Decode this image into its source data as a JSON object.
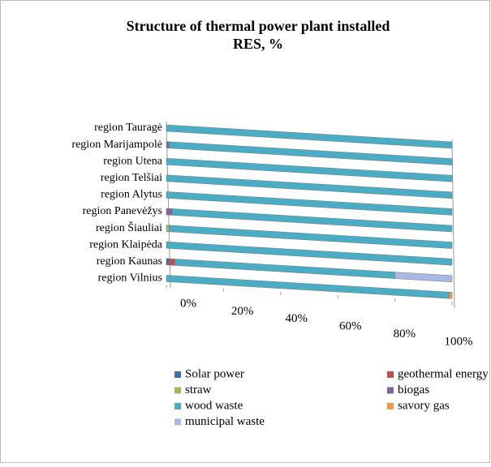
{
  "chart_data": {
    "type": "bar",
    "orientation": "horizontal",
    "stacked": true,
    "title": [
      "Structure of thermal power plant installed",
      "RES, %"
    ],
    "categories": [
      "region Tauragė",
      "region Marijampolė",
      "region Utena",
      "region Telšiai",
      "region Alytus",
      "region Panevėžys",
      "region Šiauliai",
      "region Klaipėda",
      "region Kaunas",
      "region Vilnius"
    ],
    "series": [
      {
        "name": "Solar power",
        "color": "#3e6fa8",
        "values": [
          0,
          0,
          0,
          0,
          0,
          0,
          0,
          0,
          1,
          0
        ]
      },
      {
        "name": "geothermal energy",
        "color": "#c0504d",
        "values": [
          0,
          0,
          0,
          0,
          0,
          0,
          0,
          0,
          2,
          0
        ]
      },
      {
        "name": "straw",
        "color": "#9bbb59",
        "values": [
          0,
          0,
          0,
          0,
          0,
          0,
          1,
          0,
          0,
          0
        ]
      },
      {
        "name": "biogas",
        "color": "#8064a2",
        "values": [
          0,
          1,
          0,
          0,
          0,
          2,
          0,
          0,
          0,
          0
        ]
      },
      {
        "name": "wood waste",
        "color": "#4bacc6",
        "values": [
          100,
          99,
          100,
          100,
          100,
          98,
          99,
          100,
          77,
          99
        ]
      },
      {
        "name": "savory gas",
        "color": "#f79646",
        "values": [
          0,
          0,
          0,
          0,
          0,
          0,
          0,
          0,
          0,
          1
        ]
      },
      {
        "name": "municipal waste",
        "color": "#a9b9e3",
        "values": [
          0,
          0,
          0,
          0,
          0,
          0,
          0,
          0,
          20,
          0
        ]
      }
    ],
    "xlim": [
      0,
      100
    ],
    "xticks": [
      {
        "value": 0,
        "label": "0%"
      },
      {
        "value": 20,
        "label": "20%"
      },
      {
        "value": 40,
        "label": "40%"
      },
      {
        "value": 60,
        "label": "60%"
      },
      {
        "value": 80,
        "label": "80%"
      },
      {
        "value": 100,
        "label": "100%"
      }
    ],
    "grid": false,
    "legend": "bottom"
  }
}
